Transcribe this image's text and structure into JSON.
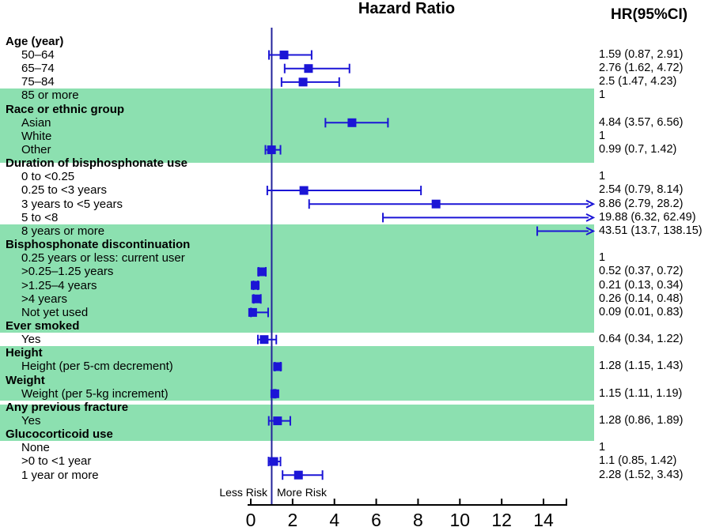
{
  "chart_data": {
    "type": "forest",
    "title": "Hazard Ratio",
    "hr_column_header": "HR(95%CI)",
    "xlabel": "",
    "x_ticks": [
      0,
      2,
      4,
      6,
      8,
      10,
      12,
      14
    ],
    "x_axis_range": [
      0,
      15.3
    ],
    "reference_value": 1,
    "risk_labels": {
      "less": "Less Risk",
      "more": "More Risk"
    },
    "colors": {
      "band_green": "#8ce0b0",
      "marker_blue": "#1b15d6",
      "reference_line_blue": "#23239b",
      "axis_black": "#000000"
    },
    "rows": [
      {
        "label": "Age (year)",
        "header": true
      },
      {
        "label": "50–64",
        "hr_text": "1.59 (0.87, 2.91)",
        "estimate": {
          "hr": 1.59,
          "lower": 0.87,
          "upper": 2.91
        }
      },
      {
        "label": "65–74",
        "hr_text": "2.76 (1.62, 4.72)",
        "estimate": {
          "hr": 2.76,
          "lower": 1.62,
          "upper": 4.72
        }
      },
      {
        "label": "75–84",
        "hr_text": "2.5 (1.47, 4.23)",
        "estimate": {
          "hr": 2.5,
          "lower": 1.47,
          "upper": 4.23
        }
      },
      {
        "label": "85 or more",
        "hr_text": "1"
      },
      {
        "label": "Race or ethnic group",
        "header": true
      },
      {
        "label": "Asian",
        "hr_text": "4.84 (3.57, 6.56)",
        "estimate": {
          "hr": 4.84,
          "lower": 3.57,
          "upper": 6.56
        }
      },
      {
        "label": "White",
        "hr_text": "1"
      },
      {
        "label": "Other",
        "hr_text": "0.99 (0.7, 1.42)",
        "estimate": {
          "hr": 0.99,
          "lower": 0.7,
          "upper": 1.42
        }
      },
      {
        "label": "Duration of bisphosphonate use",
        "header": true
      },
      {
        "label": "0 to <0.25",
        "hr_text": "1"
      },
      {
        "label": "0.25 to <3 years",
        "hr_text": "2.54 (0.79, 8.14)",
        "estimate": {
          "hr": 2.54,
          "lower": 0.79,
          "upper": 8.14
        }
      },
      {
        "label": "3 years to <5 years",
        "hr_text": "8.86 (2.79, 28.2)",
        "estimate": {
          "hr": 8.86,
          "lower": 2.79,
          "upper": 28.2,
          "arrow": true
        }
      },
      {
        "label": "5 to <8",
        "hr_text": "19.88 (6.32, 62.49)",
        "estimate": {
          "hr": 19.88,
          "lower": 6.32,
          "upper": 62.49,
          "arrow": true
        }
      },
      {
        "label": "8 years or more",
        "hr_text": "43.51 (13.7, 138.15)",
        "estimate": {
          "hr": 43.51,
          "lower": 13.7,
          "upper": 138.15,
          "arrow": true
        }
      },
      {
        "label": "Bisphosphonate discontinuation",
        "header": true
      },
      {
        "label": "0.25 years or less: current user",
        "hr_text": "1"
      },
      {
        "label": ">0.25–1.25 years",
        "hr_text": "0.52 (0.37, 0.72)",
        "estimate": {
          "hr": 0.52,
          "lower": 0.37,
          "upper": 0.72
        }
      },
      {
        "label": ">1.25–4 years",
        "hr_text": "0.21 (0.13, 0.34)",
        "estimate": {
          "hr": 0.21,
          "lower": 0.13,
          "upper": 0.34
        }
      },
      {
        "label": ">4 years",
        "hr_text": "0.26 (0.14, 0.48)",
        "estimate": {
          "hr": 0.26,
          "lower": 0.14,
          "upper": 0.48
        }
      },
      {
        "label": "Not yet used",
        "hr_text": "0.09 (0.01, 0.83)",
        "estimate": {
          "hr": 0.09,
          "lower": 0.01,
          "upper": 0.83
        }
      },
      {
        "label": "Ever smoked",
        "header": true
      },
      {
        "label": "Yes",
        "hr_text": "0.64 (0.34, 1.22)",
        "estimate": {
          "hr": 0.64,
          "lower": 0.34,
          "upper": 1.22
        }
      },
      {
        "label": "Height",
        "header": true
      },
      {
        "label": "Height (per 5-cm decrement)",
        "hr_text": "1.28 (1.15, 1.43)",
        "estimate": {
          "hr": 1.28,
          "lower": 1.15,
          "upper": 1.43
        }
      },
      {
        "label": "Weight",
        "header": true
      },
      {
        "label": "Weight (per 5-kg increment)",
        "hr_text": "1.15 (1.11, 1.19)",
        "estimate": {
          "hr": 1.15,
          "lower": 1.11,
          "upper": 1.19
        }
      },
      {
        "label": "Any previous fracture",
        "header": true
      },
      {
        "label": "Yes",
        "hr_text": "1.28 (0.86, 1.89)",
        "estimate": {
          "hr": 1.28,
          "lower": 0.86,
          "upper": 1.89
        }
      },
      {
        "label": "Glucocorticoid use",
        "header": true
      },
      {
        "label": "None",
        "hr_text": "1"
      },
      {
        "label": ">0 to <1 year",
        "hr_text": "1.1 (0.85, 1.42)",
        "estimate": {
          "hr": 1.1,
          "lower": 0.85,
          "upper": 1.42
        }
      },
      {
        "label": "1 year or more",
        "hr_text": "2.28 (1.52, 3.43)",
        "estimate": {
          "hr": 2.28,
          "lower": 1.52,
          "upper": 3.43
        }
      }
    ],
    "highlight_bands": [
      {
        "from_row": 4,
        "to_row": 8,
        "bottom_extend": 8
      },
      {
        "from_row": 14,
        "to_row": 21
      },
      {
        "from_row": 23,
        "to_row": 26
      },
      {
        "from_row": 27,
        "to_row": 29,
        "top_trim": 5
      }
    ]
  }
}
